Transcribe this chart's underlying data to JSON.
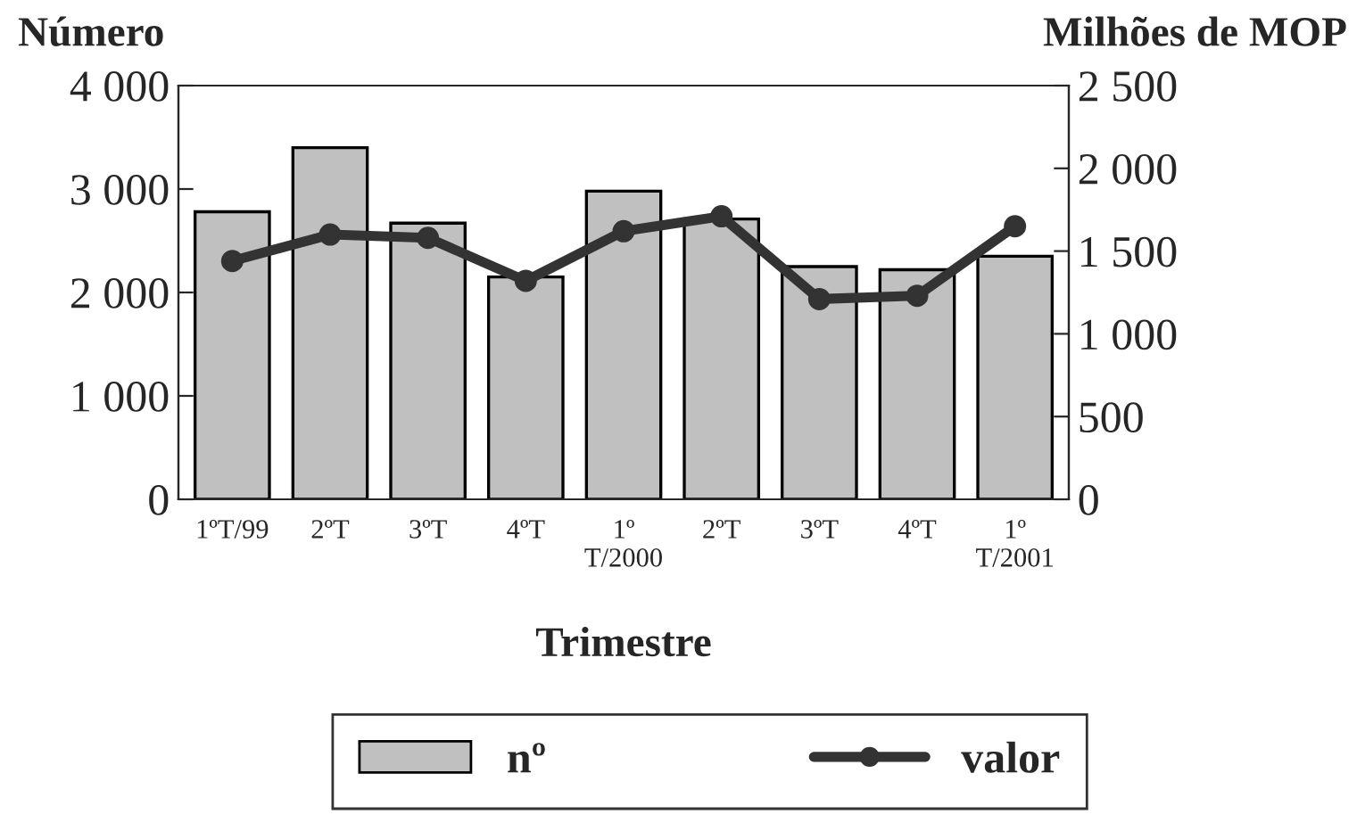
{
  "chart_data": {
    "type": "bar",
    "categories": [
      "1ºT/99",
      "2ºT",
      "3ºT",
      "4ºT",
      "1º\nT/2000",
      "2ºT",
      "3ºT",
      "4ºT",
      "1º\nT/2001"
    ],
    "series": [
      {
        "name": "nº",
        "color": "#c0c0c0",
        "values": [
          2780,
          3400,
          2670,
          2150,
          2980,
          2710,
          2250,
          2220,
          2350
        ]
      },
      {
        "name": "valor",
        "type": "line",
        "axis": "y2",
        "color": "#333333",
        "marker": "circle",
        "values": [
          1440,
          1600,
          1580,
          1320,
          1620,
          1710,
          1210,
          1230,
          1650
        ]
      }
    ],
    "xlabel": "Trimestre",
    "ylabel": "Número",
    "y2label": "Milhões de MOP",
    "ylim": [
      0,
      4000
    ],
    "yticks": [
      0,
      {
        "value": 1000,
        "label": "1 000"
      },
      {
        "value": 2000,
        "label": "2 000"
      },
      {
        "value": 3000,
        "label": "3 000"
      },
      {
        "value": 4000,
        "label": "4 000"
      }
    ],
    "y2lim": [
      0,
      2500
    ],
    "y2ticks": [
      0,
      500,
      {
        "value": 1000,
        "label": "1 000"
      },
      {
        "value": 1500,
        "label": "1 500"
      },
      {
        "value": 2000,
        "label": "2 000"
      },
      {
        "value": 2500,
        "label": "2 500"
      }
    ],
    "grid": false,
    "legend": "bottom"
  }
}
